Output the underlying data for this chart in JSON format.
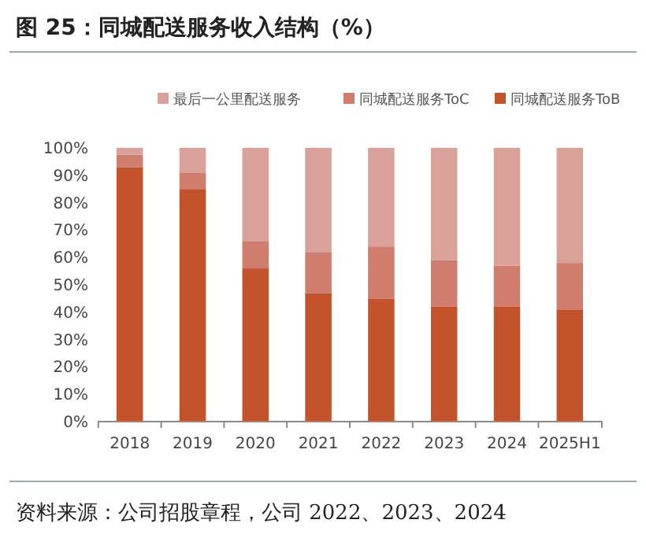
{
  "chart_data": {
    "type": "bar",
    "stacked": true,
    "title": "图 25：同城配送服务收入结构（%）",
    "annotations": [
      "资料来源：公司招股章程，公司 2022、2023、2024"
    ],
    "categories": [
      "2018",
      "2019",
      "2020",
      "2021",
      "2022",
      "2023",
      "2024",
      "2025H1"
    ],
    "series": [
      {
        "name": "同城配送服务ToB",
        "color": "#c3532b",
        "values": [
          93,
          85,
          56,
          47,
          45,
          42,
          42,
          41
        ]
      },
      {
        "name": "同城配送服务ToC",
        "color": "#d07d6d",
        "values": [
          4.5,
          6,
          10,
          15,
          19,
          17,
          15,
          17
        ]
      },
      {
        "name": "最后一公里配送服务",
        "color": "#d9a198",
        "values": [
          2.5,
          9,
          34,
          38,
          36,
          41,
          43,
          42
        ]
      }
    ],
    "ylim": [
      0,
      100
    ],
    "yticks": [
      {
        "value": 0,
        "label": "0%"
      },
      {
        "value": 10,
        "label": "10%"
      },
      {
        "value": 20,
        "label": "20%"
      },
      {
        "value": 30,
        "label": "30%"
      },
      {
        "value": 40,
        "label": "40%"
      },
      {
        "value": 50,
        "label": "50%"
      },
      {
        "value": 60,
        "label": "60%"
      },
      {
        "value": 70,
        "label": "70%"
      },
      {
        "value": 80,
        "label": "80%"
      },
      {
        "value": 90,
        "label": "90%"
      },
      {
        "value": 100,
        "label": "100%"
      }
    ],
    "grid": false,
    "legend": "top"
  }
}
